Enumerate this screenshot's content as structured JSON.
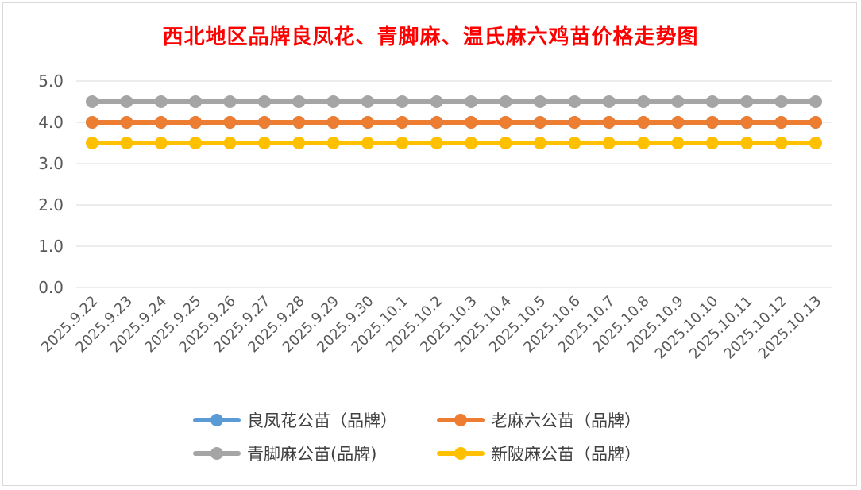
{
  "chart_data": {
    "type": "line",
    "title": "西北地区品牌良凤花、青脚麻、温氏麻六鸡苗价格走势图",
    "x": [
      "2025.9.22",
      "2025.9.23",
      "2025.9.24",
      "2025.9.25",
      "2025.9.26",
      "2025.9.27",
      "2025.9.28",
      "2025.9.29",
      "2025.9.30",
      "2025.10.1",
      "2025.10.2",
      "2025.10.3",
      "2025.10.4",
      "2025.10.5",
      "2025.10.6",
      "2025.10.7",
      "2025.10.8",
      "2025.10.9",
      "2025.10.10",
      "2025.10.11",
      "2025.10.12",
      "2025.10.13"
    ],
    "yticks": [
      "0.0",
      "1.0",
      "2.0",
      "3.0",
      "4.0",
      "5.0"
    ],
    "ylim": [
      0,
      5
    ],
    "grid": true,
    "legend_position": "bottom",
    "series": [
      {
        "name": "良凤花公苗（品牌）",
        "color": "#5b9bd5",
        "values": [
          4.0,
          4.0,
          4.0,
          4.0,
          4.0,
          4.0,
          4.0,
          4.0,
          4.0,
          4.0,
          4.0,
          4.0,
          4.0,
          4.0,
          4.0,
          4.0,
          4.0,
          4.0,
          4.0,
          4.0,
          4.0,
          4.0
        ]
      },
      {
        "name": "老麻六公苗（品牌）",
        "color": "#ed7d31",
        "values": [
          4.0,
          4.0,
          4.0,
          4.0,
          4.0,
          4.0,
          4.0,
          4.0,
          4.0,
          4.0,
          4.0,
          4.0,
          4.0,
          4.0,
          4.0,
          4.0,
          4.0,
          4.0,
          4.0,
          4.0,
          4.0,
          4.0
        ]
      },
      {
        "name": "青脚麻公苗(品牌)",
        "color": "#a5a5a5",
        "values": [
          4.5,
          4.5,
          4.5,
          4.5,
          4.5,
          4.5,
          4.5,
          4.5,
          4.5,
          4.5,
          4.5,
          4.5,
          4.5,
          4.5,
          4.5,
          4.5,
          4.5,
          4.5,
          4.5,
          4.5,
          4.5,
          4.5
        ]
      },
      {
        "name": "新陂麻公苗（品牌）",
        "color": "#ffc000",
        "values": [
          3.5,
          3.5,
          3.5,
          3.5,
          3.5,
          3.5,
          3.5,
          3.5,
          3.5,
          3.5,
          3.5,
          3.5,
          3.5,
          3.5,
          3.5,
          3.5,
          3.5,
          3.5,
          3.5,
          3.5,
          3.5,
          3.5
        ]
      }
    ]
  }
}
